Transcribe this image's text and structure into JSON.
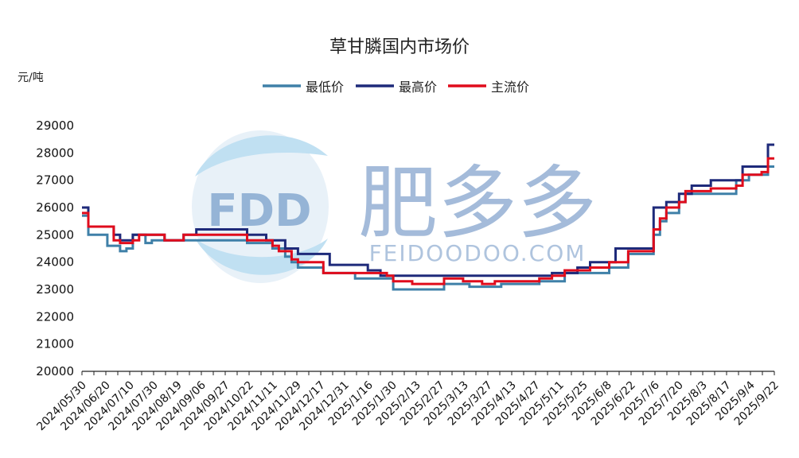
{
  "chart_data": {
    "type": "line",
    "title": "草甘膦国内市场价",
    "unit": "元/吨",
    "xlabel": "",
    "ylabel": "",
    "ylim": [
      20000,
      29000
    ],
    "yticks": [
      20000,
      21000,
      22000,
      23000,
      24000,
      25000,
      26000,
      27000,
      28000,
      29000
    ],
    "legend_position": "top-center",
    "grid": false,
    "x_tick_labels": [
      "2024/05/30",
      "2024/06/20",
      "2024/07/10",
      "2024/07/30",
      "2024/08/19",
      "2024/09/06",
      "2024/09/27",
      "2024/10/22",
      "2024/11/11",
      "2024/11/29",
      "2024/12/17",
      "2024/12/31",
      "2025/1/16",
      "2025/1/30",
      "2025/2/13",
      "2025/2/27",
      "2025/3/13",
      "2025/3/27",
      "2025/4/13",
      "2025/4/27",
      "2025/5/11",
      "2025/5/25",
      "2025/6/8",
      "2025/6/22",
      "2025/7/6",
      "2025/7/20",
      "2025/8/3",
      "2025/8/17",
      "2025/9/4",
      "2025/9/22"
    ],
    "series": [
      {
        "name": "最低价",
        "color": "#3f80a8",
        "values": [
          25700,
          25000,
          25000,
          25000,
          24600,
          24600,
          24400,
          24500,
          25000,
          25000,
          24700,
          24800,
          24800,
          24800,
          24800,
          24800,
          24800,
          24800,
          24800,
          24800,
          24800,
          24800,
          24800,
          24800,
          24800,
          24800,
          24700,
          24700,
          24700,
          24700,
          24500,
          24500,
          24200,
          24000,
          23800,
          23800,
          23800,
          23800,
          23600,
          23600,
          23600,
          23600,
          23600,
          23400,
          23400,
          23400,
          23400,
          23400,
          23400,
          23000,
          23000,
          23000,
          23000,
          23000,
          23000,
          23000,
          23000,
          23200,
          23200,
          23200,
          23200,
          23100,
          23100,
          23100,
          23100,
          23100,
          23200,
          23200,
          23200,
          23200,
          23200,
          23200,
          23300,
          23300,
          23300,
          23300,
          23600,
          23600,
          23600,
          23600,
          23600,
          23600,
          23600,
          23800,
          23800,
          23800,
          24300,
          24300,
          24300,
          24300,
          25000,
          25500,
          25800,
          25800,
          26200,
          26500,
          26500,
          26500,
          26500,
          26500,
          26500,
          26500,
          26500,
          27000,
          27000,
          27200,
          27200,
          27200,
          27500,
          27500
        ]
      },
      {
        "name": "最高价",
        "color": "#1e2a7a",
        "values": [
          26000,
          25300,
          25300,
          25300,
          25300,
          25000,
          24800,
          24800,
          25000,
          25000,
          25000,
          25000,
          25000,
          24800,
          24800,
          24800,
          25000,
          25000,
          25200,
          25200,
          25200,
          25200,
          25200,
          25200,
          25200,
          25200,
          25000,
          25000,
          25000,
          24800,
          24800,
          24800,
          24500,
          24500,
          24300,
          24300,
          24300,
          24300,
          24300,
          23900,
          23900,
          23900,
          23900,
          23900,
          23900,
          23700,
          23700,
          23500,
          23500,
          23500,
          23500,
          23500,
          23500,
          23500,
          23500,
          23500,
          23500,
          23500,
          23500,
          23500,
          23500,
          23500,
          23500,
          23500,
          23500,
          23500,
          23500,
          23500,
          23500,
          23500,
          23500,
          23500,
          23500,
          23500,
          23600,
          23600,
          23600,
          23600,
          23800,
          23800,
          24000,
          24000,
          24000,
          24000,
          24500,
          24500,
          24500,
          24500,
          24500,
          24500,
          26000,
          26000,
          26200,
          26200,
          26500,
          26500,
          26800,
          26800,
          26800,
          27000,
          27000,
          27000,
          27000,
          27000,
          27500,
          27500,
          27500,
          27500,
          28300,
          28300
        ]
      },
      {
        "name": "主流价",
        "color": "#e00c1c",
        "values": [
          25800,
          25300,
          25300,
          25300,
          25300,
          24800,
          24700,
          24700,
          24800,
          25000,
          25000,
          25000,
          25000,
          24800,
          24800,
          24800,
          25000,
          25000,
          25000,
          25000,
          25000,
          25000,
          25000,
          25000,
          25000,
          25000,
          24800,
          24800,
          24800,
          24800,
          24600,
          24400,
          24400,
          24100,
          24000,
          24000,
          24000,
          24000,
          23600,
          23600,
          23600,
          23600,
          23600,
          23600,
          23600,
          23600,
          23600,
          23600,
          23500,
          23300,
          23300,
          23300,
          23200,
          23200,
          23200,
          23200,
          23200,
          23400,
          23400,
          23400,
          23300,
          23300,
          23300,
          23200,
          23200,
          23300,
          23300,
          23300,
          23300,
          23300,
          23300,
          23300,
          23400,
          23400,
          23500,
          23500,
          23700,
          23700,
          23700,
          23700,
          23800,
          23800,
          23800,
          24000,
          24000,
          24000,
          24400,
          24400,
          24400,
          24400,
          25200,
          25600,
          26000,
          26000,
          26200,
          26600,
          26600,
          26600,
          26600,
          26700,
          26700,
          26700,
          26700,
          26800,
          27200,
          27200,
          27200,
          27300,
          27800,
          27800
        ]
      }
    ]
  },
  "watermark": {
    "logo_text": "FDD",
    "brand_text": "肥多多",
    "url_text": "FEIDOODOO.COM"
  }
}
